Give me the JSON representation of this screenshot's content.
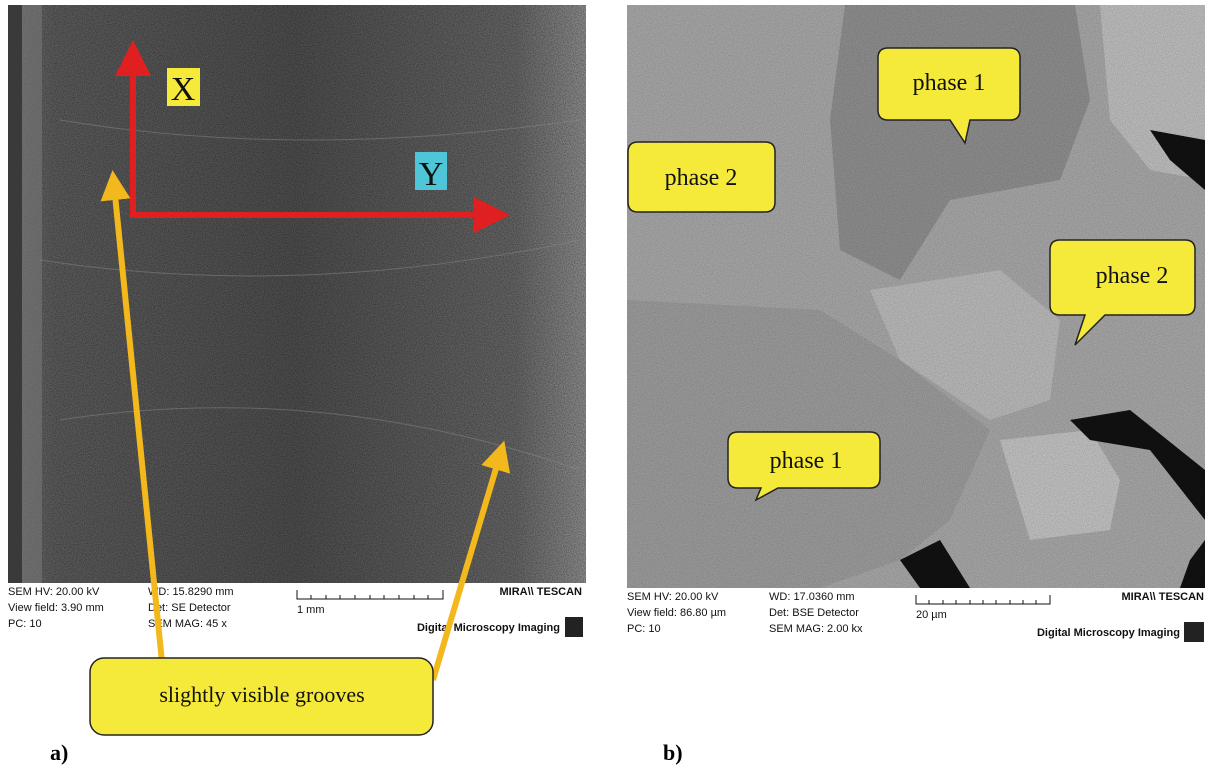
{
  "panel_a": {
    "label": "a)",
    "x_axis": "X",
    "y_axis": "Y",
    "callout": "slightly visible  grooves",
    "info": {
      "hv": "SEM HV: 20.00 kV",
      "view_field": "View field: 3.90 mm",
      "pc": "PC:  10",
      "wd": "WD: 15.8290 mm",
      "det": "Det: SE Detector",
      "mag": "SEM MAG: 45 x",
      "scale": "1 mm",
      "brand": "MIRA\\\\ TESCAN",
      "imaging": "Digital Microscopy Imaging"
    }
  },
  "panel_b": {
    "label": "b)",
    "bubbles": [
      "phase 1",
      "phase 2",
      "phase 2",
      "phase 1"
    ],
    "info": {
      "hv": "SEM HV: 20.00 kV",
      "view_field": "View field: 86.80 µm",
      "pc": "PC:  10",
      "wd": "WD: 17.0360 mm",
      "det": "Det: BSE Detector",
      "mag": "SEM MAG: 2.00 kx",
      "scale": "20 µm",
      "brand": "MIRA\\\\ TESCAN",
      "imaging": "Digital Microscopy Imaging"
    }
  }
}
